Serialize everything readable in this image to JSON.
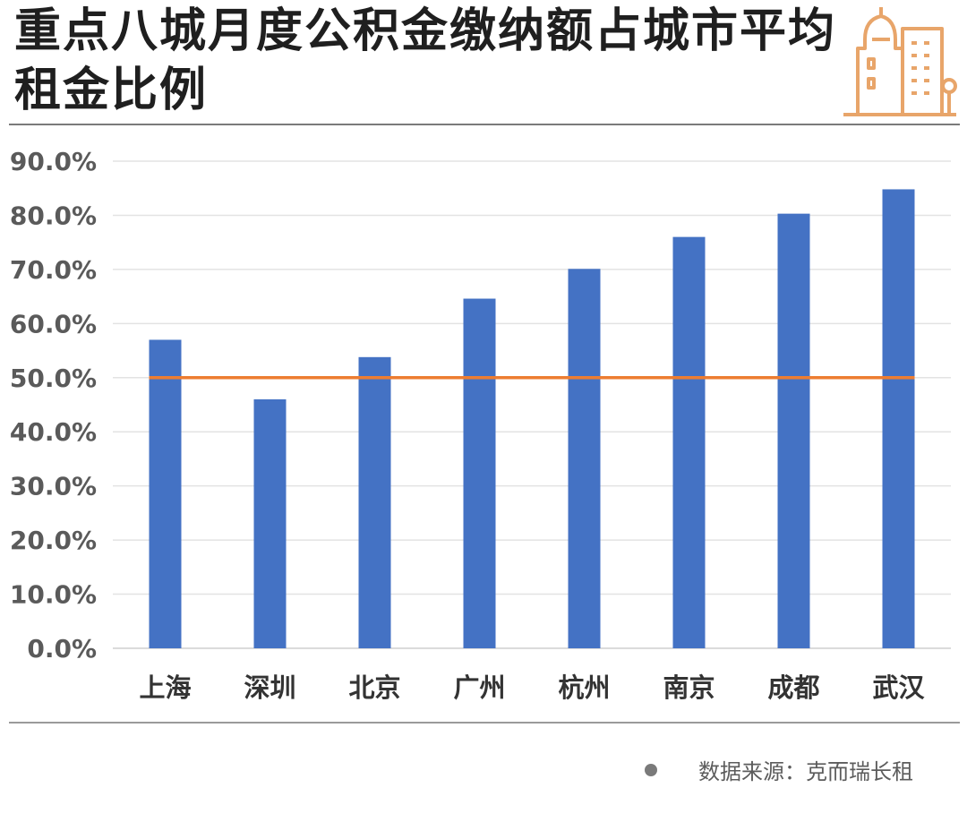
{
  "title": "重点八城月度公积金缴纳额占城市平均租金比例",
  "source": {
    "text": "数据来源：克而瑞长租",
    "dot_color": "#7a7a7a"
  },
  "logo": {
    "icon": "city-buildings-icon",
    "color": "#e8a56a"
  },
  "chart_data": {
    "type": "bar",
    "categories": [
      "上海",
      "深圳",
      "北京",
      "广州",
      "杭州",
      "南京",
      "成都",
      "武汉"
    ],
    "values": [
      57.0,
      46.0,
      53.8,
      64.6,
      70.1,
      76.0,
      80.3,
      84.8
    ],
    "ylim": [
      0,
      90
    ],
    "yticks": [
      0,
      10,
      20,
      30,
      40,
      50,
      60,
      70,
      80,
      90
    ],
    "ytick_labels": [
      "0.0%",
      "10.0%",
      "20.0%",
      "30.0%",
      "40.0%",
      "50.0%",
      "60.0%",
      "70.0%",
      "80.0%",
      "90.0%"
    ],
    "reference_line": 50,
    "grid": true,
    "legend": "none",
    "bar_color": "#4472c4",
    "reference_line_color": "#ed7d31",
    "grid_color": "#e3e3e3"
  }
}
